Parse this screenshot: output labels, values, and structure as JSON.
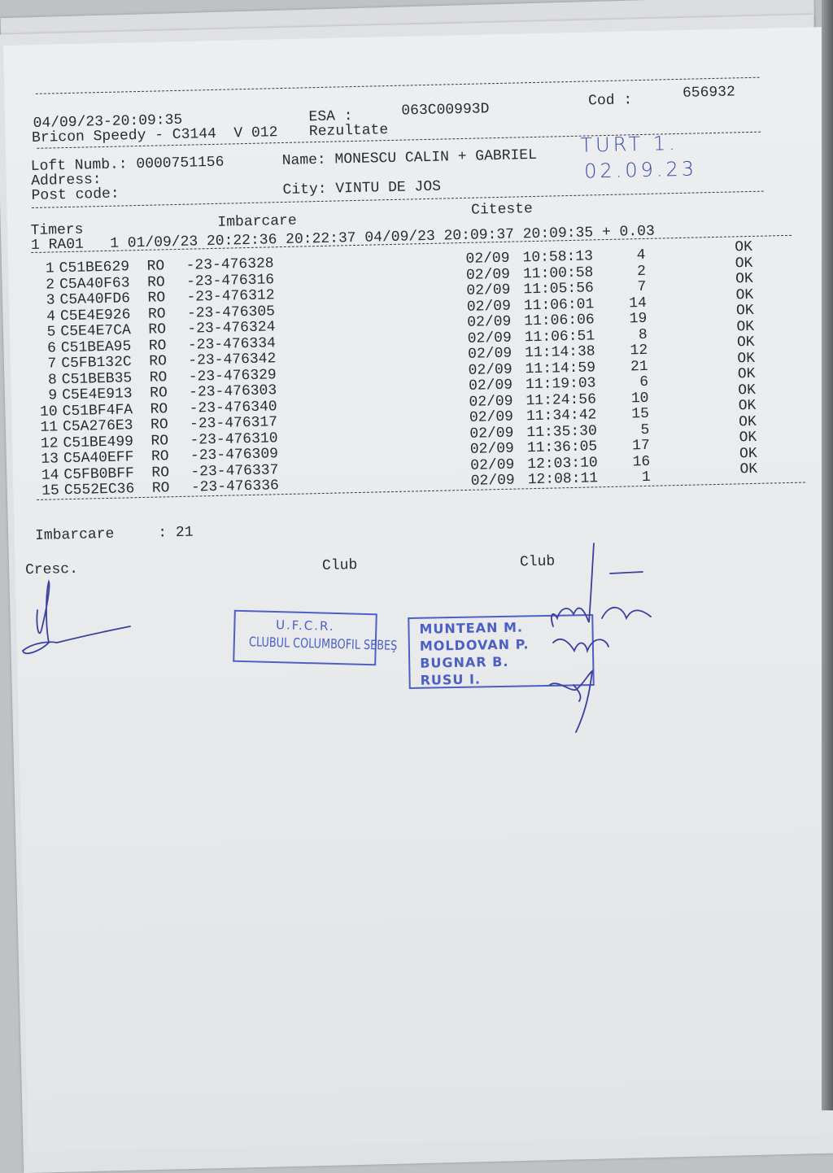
{
  "header": {
    "datetime": "04/09/23-20:09:35",
    "esa_label": "ESA :",
    "esa_value": "063C00993D",
    "cod_label": "Cod :",
    "cod_value": "656932",
    "device": "Bricon Speedy - C3144  V 012",
    "title": "Rezultate"
  },
  "owner": {
    "loft": "Loft Numb.: 0000751156",
    "name": "Name: MONESCU CALIN + GABRIEL",
    "address": "Address:",
    "post_code": "Post code:",
    "city": "City: VINTU DE JOS"
  },
  "handwritten": {
    "line1": "TURT 1.",
    "line2": "02.09.23"
  },
  "timers": {
    "label": "Timers",
    "imbarcare_label": "Imbarcare",
    "citeste_label": "Citeste",
    "line": "1 RA01   1 01/09/23 20:22:36 20:22:37 04/09/23 20:09:37 20:09:35 + 0.03"
  },
  "rows": [
    {
      "n": "1",
      "chip": "C51BE629",
      "country": "RO",
      "ring": "-23-476328",
      "date": "02/09",
      "time": "10:58:13",
      "no": "4",
      "status": "OK"
    },
    {
      "n": "2",
      "chip": "C5A40F63",
      "country": "RO",
      "ring": "-23-476316",
      "date": "02/09",
      "time": "11:00:58",
      "no": "2",
      "status": "OK"
    },
    {
      "n": "3",
      "chip": "C5A40FD6",
      "country": "RO",
      "ring": "-23-476312",
      "date": "02/09",
      "time": "11:05:56",
      "no": "7",
      "status": "OK"
    },
    {
      "n": "4",
      "chip": "C5E4E926",
      "country": "RO",
      "ring": "-23-476305",
      "date": "02/09",
      "time": "11:06:01",
      "no": "14",
      "status": "OK"
    },
    {
      "n": "5",
      "chip": "C5E4E7CA",
      "country": "RO",
      "ring": "-23-476324",
      "date": "02/09",
      "time": "11:06:06",
      "no": "19",
      "status": "OK"
    },
    {
      "n": "6",
      "chip": "C51BEA95",
      "country": "RO",
      "ring": "-23-476334",
      "date": "02/09",
      "time": "11:06:51",
      "no": "8",
      "status": "OK"
    },
    {
      "n": "7",
      "chip": "C5FB132C",
      "country": "RO",
      "ring": "-23-476342",
      "date": "02/09",
      "time": "11:14:38",
      "no": "12",
      "status": "OK"
    },
    {
      "n": "8",
      "chip": "C51BEB35",
      "country": "RO",
      "ring": "-23-476329",
      "date": "02/09",
      "time": "11:14:59",
      "no": "21",
      "status": "OK"
    },
    {
      "n": "9",
      "chip": "C5E4E913",
      "country": "RO",
      "ring": "-23-476303",
      "date": "02/09",
      "time": "11:19:03",
      "no": "6",
      "status": "OK"
    },
    {
      "n": "10",
      "chip": "C51BF4FA",
      "country": "RO",
      "ring": "-23-476340",
      "date": "02/09",
      "time": "11:24:56",
      "no": "10",
      "status": "OK"
    },
    {
      "n": "11",
      "chip": "C5A276E3",
      "country": "RO",
      "ring": "-23-476317",
      "date": "02/09",
      "time": "11:34:42",
      "no": "15",
      "status": "OK"
    },
    {
      "n": "12",
      "chip": "C51BE499",
      "country": "RO",
      "ring": "-23-476310",
      "date": "02/09",
      "time": "11:35:30",
      "no": "5",
      "status": "OK"
    },
    {
      "n": "13",
      "chip": "C5A40EFF",
      "country": "RO",
      "ring": "-23-476309",
      "date": "02/09",
      "time": "11:36:05",
      "no": "17",
      "status": "OK"
    },
    {
      "n": "14",
      "chip": "C5FB0BFF",
      "country": "RO",
      "ring": "-23-476337",
      "date": "02/09",
      "time": "12:03:10",
      "no": "16",
      "status": "OK"
    },
    {
      "n": "15",
      "chip": "C552EC36",
      "country": "RO",
      "ring": "-23-476336",
      "date": "02/09",
      "time": "12:08:11",
      "no": "1",
      "status": "OK"
    }
  ],
  "footer": {
    "imbarcare": "Imbarcare     : 21",
    "cresc": "Cresc.",
    "club1": "Club",
    "club2": "Club"
  },
  "stamp_ufcr": {
    "line1": "U.F.C.R.",
    "line2": "CLUBUL COLUMBOFIL SEBEŞ"
  },
  "stamp_committee": {
    "names": [
      "MUNTEAN M.",
      "MOLDOVAN P.",
      "BUGNAR B.",
      "RUSU I."
    ]
  },
  "colors": {
    "ink": "#2a2b2e",
    "stamp": "#4b5fc4",
    "pen": "#3b3fa0",
    "paper": "#eceef0"
  }
}
